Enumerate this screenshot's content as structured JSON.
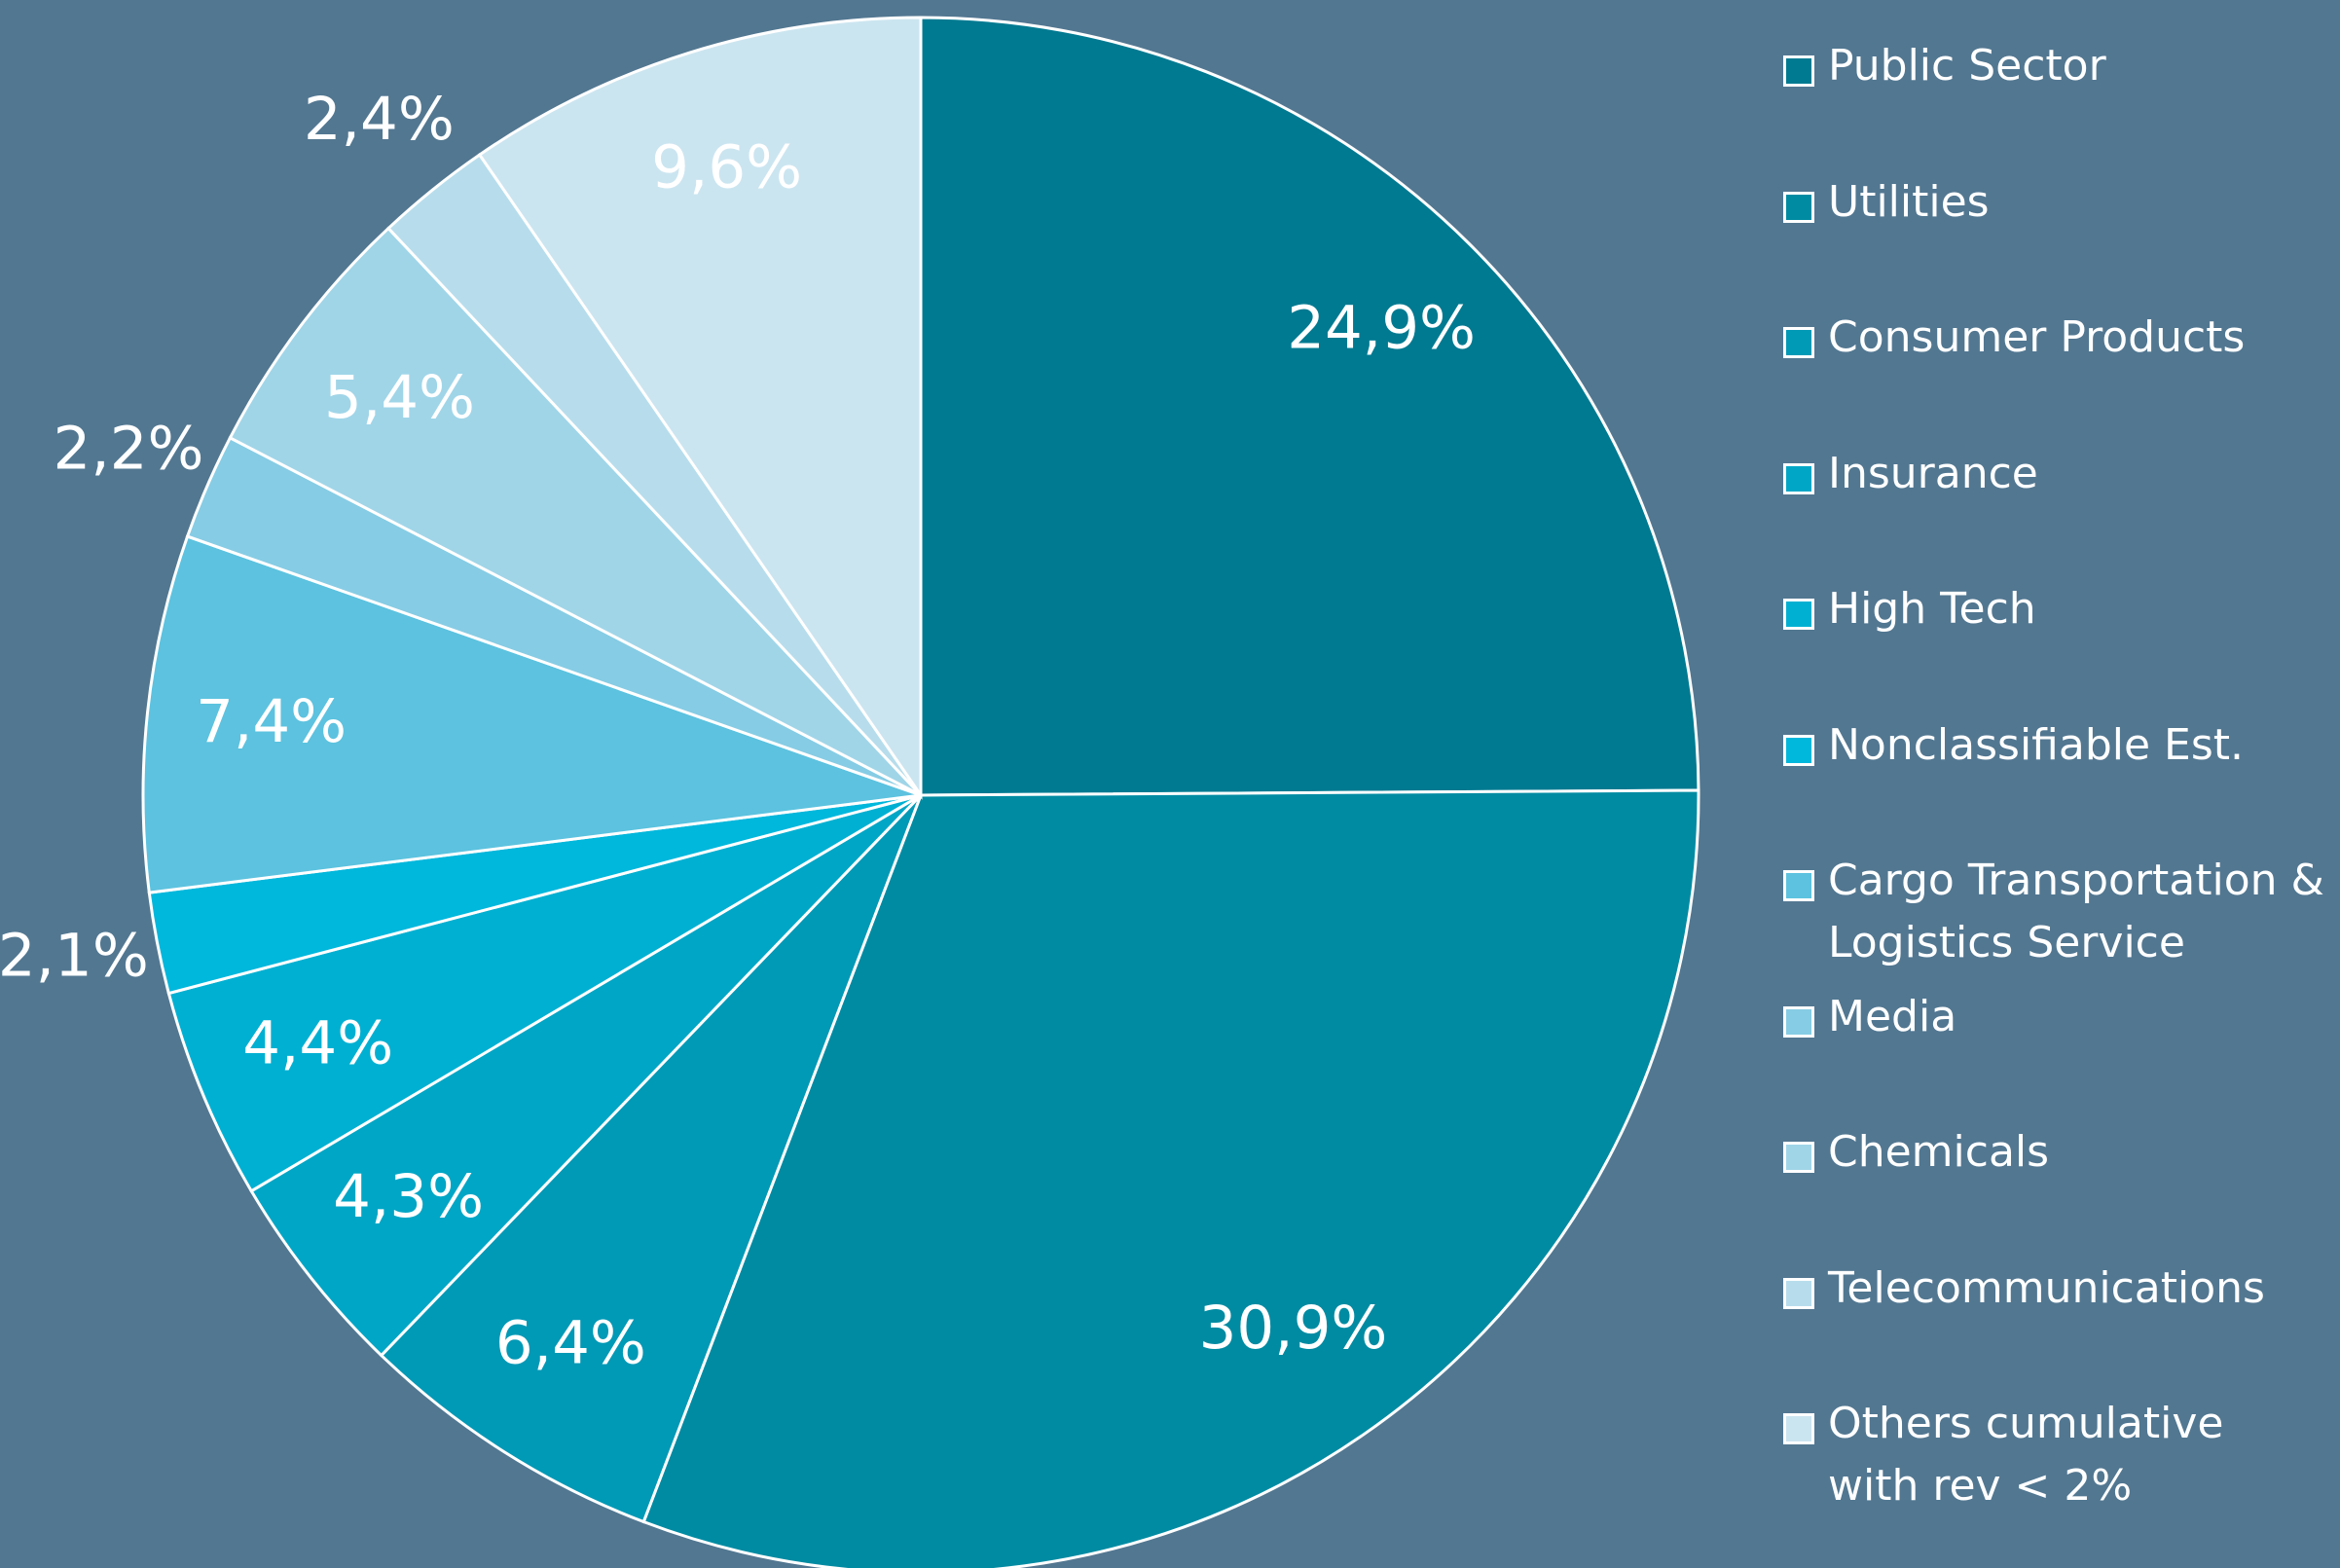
{
  "chart_data": {
    "type": "pie",
    "categories": [
      "Public Sector",
      "Utilities",
      "Consumer Products",
      "Insurance",
      "High Tech",
      "Nonclassifiable Est.",
      "Cargo Transportation & Logistics Service",
      "Media",
      "Chemicals",
      "Telecommunications",
      "Others cumulative with rev < 2%"
    ],
    "values": [
      24.9,
      30.9,
      6.4,
      4.3,
      4.4,
      2.1,
      7.4,
      2.2,
      5.4,
      2.4,
      9.6
    ],
    "value_labels": [
      "24,9%",
      "30,9%",
      "6,4%",
      "4,3%",
      "4,4%",
      "2,1%",
      "7,4%",
      "2,2%",
      "5,4%",
      "2,4%",
      "9,6%"
    ],
    "colors": [
      "#007a91",
      "#008ba3",
      "#0099b6",
      "#00a6c6",
      "#00b0d2",
      "#00b7dc",
      "#5cc2df",
      "#86cce4",
      "#a0d5e8",
      "#b7ddec",
      "#cbe5f0"
    ],
    "legend": "right"
  }
}
